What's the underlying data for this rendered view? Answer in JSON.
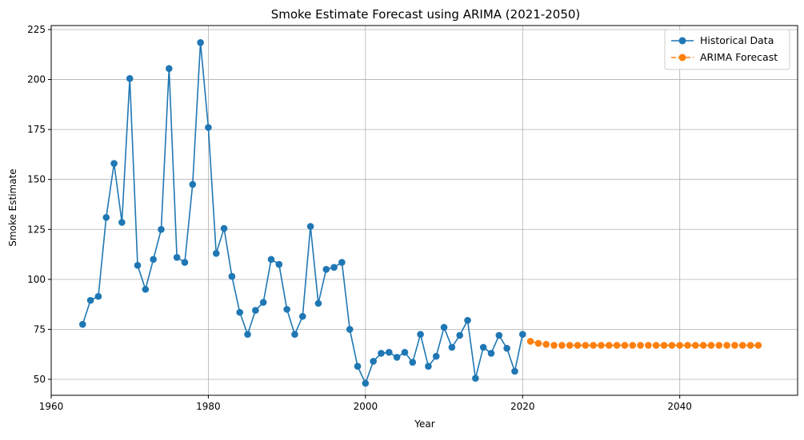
{
  "chart_data": {
    "type": "line",
    "title": "Smoke Estimate Forecast using ARIMA (2021-2050)",
    "xlabel": "Year",
    "ylabel": "Smoke Estimate",
    "xlim": [
      1960,
      2055
    ],
    "ylim": [
      42,
      227
    ],
    "xticks": [
      1960,
      1980,
      2000,
      2020,
      2040
    ],
    "yticks": [
      50,
      75,
      100,
      125,
      150,
      175,
      200,
      225
    ],
    "grid": true,
    "legend_position": "top-right",
    "series": [
      {
        "name": "Historical Data",
        "color": "#1f77b4",
        "linestyle": "solid",
        "marker": "circle",
        "x": [
          1964,
          1965,
          1966,
          1967,
          1968,
          1969,
          1970,
          1971,
          1972,
          1973,
          1974,
          1975,
          1976,
          1977,
          1978,
          1979,
          1980,
          1981,
          1982,
          1983,
          1984,
          1985,
          1986,
          1987,
          1988,
          1989,
          1990,
          1991,
          1992,
          1993,
          1994,
          1995,
          1996,
          1997,
          1998,
          1999,
          2000,
          2001,
          2002,
          2003,
          2004,
          2005,
          2006,
          2007,
          2008,
          2009,
          2010,
          2011,
          2012,
          2013,
          2014,
          2015,
          2016,
          2017,
          2018,
          2019,
          2020
        ],
        "y": [
          77.5,
          89.5,
          91.5,
          131,
          158,
          128.5,
          200.5,
          107,
          95,
          110,
          125,
          205.5,
          111,
          108.5,
          147.5,
          218.5,
          176,
          113,
          125.5,
          101.5,
          83.5,
          72.5,
          84.5,
          88.5,
          110,
          107.5,
          85,
          72.5,
          81.5,
          126.5,
          88,
          105,
          106,
          108.5,
          75,
          56.5,
          48,
          59,
          63,
          63.5,
          61,
          63.5,
          58.5,
          72.5,
          56.5,
          61.5,
          76,
          66,
          72,
          79.5,
          50.5,
          66,
          63,
          72,
          65.5,
          54,
          72.5
        ]
      },
      {
        "name": "ARIMA Forecast",
        "color": "#ff7f0e",
        "linestyle": "dashed",
        "marker": "circle",
        "x": [
          2021,
          2022,
          2023,
          2024,
          2025,
          2026,
          2027,
          2028,
          2029,
          2030,
          2031,
          2032,
          2033,
          2034,
          2035,
          2036,
          2037,
          2038,
          2039,
          2040,
          2041,
          2042,
          2043,
          2044,
          2045,
          2046,
          2047,
          2048,
          2049,
          2050
        ],
        "y": [
          69,
          68,
          67.5,
          67,
          67,
          67,
          67,
          67,
          67,
          67,
          67,
          67,
          67,
          67,
          67,
          67,
          67,
          67,
          67,
          67,
          67,
          67,
          67,
          67,
          67,
          67,
          67,
          67,
          67,
          67
        ]
      }
    ]
  }
}
